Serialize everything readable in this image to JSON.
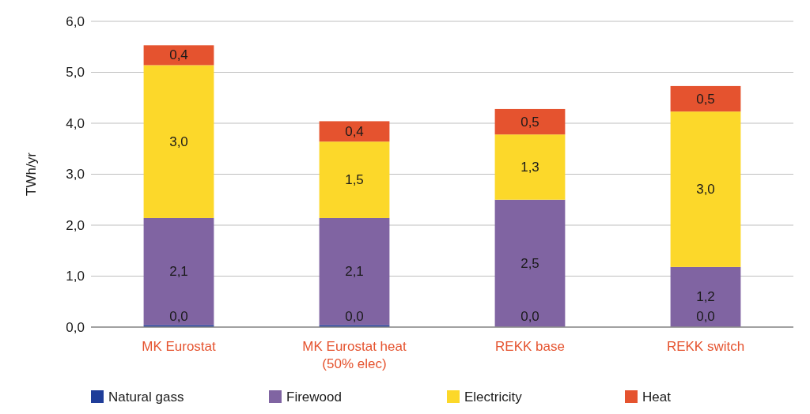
{
  "chart_data": {
    "type": "bar",
    "stacked": true,
    "ylabel": "TWh/yr",
    "categories": [
      "MK Eurostat",
      "MK Eurostat heat (50% elec)",
      "REKK base",
      "REKK switch"
    ],
    "series": [
      {
        "name": "Natural gass",
        "color": "#1f3d99",
        "values": [
          0.04,
          0.04,
          0,
          0
        ],
        "value_labels": [
          "0,0",
          "0,0",
          null,
          null
        ]
      },
      {
        "name": "Firewood",
        "color": "#8064a2",
        "values": [
          2.1,
          2.1,
          2.5,
          1.18
        ],
        "value_labels": [
          "2,1",
          "2,1",
          "2,5",
          "1,2"
        ]
      },
      {
        "name": "Electricity",
        "color": "#fcd82a",
        "values": [
          3.0,
          1.5,
          1.28,
          3.05
        ],
        "value_labels": [
          "3,0",
          "1,5",
          "1,3",
          "3,0"
        ]
      },
      {
        "name": "Heat",
        "color": "#e5532f",
        "values": [
          0.39,
          0.4,
          0.5,
          0.5
        ],
        "value_labels": [
          "0,4",
          "0,4",
          "0,5",
          "0,5"
        ]
      }
    ],
    "ylim": [
      0,
      6
    ],
    "yticks": [
      {
        "value": 0,
        "label": "0,0"
      },
      {
        "value": 1,
        "label": "1,0"
      },
      {
        "value": 2,
        "label": "2,0"
      },
      {
        "value": 3,
        "label": "3,0"
      },
      {
        "value": 4,
        "label": "4,0"
      },
      {
        "value": 5,
        "label": "5,0"
      },
      {
        "value": 6,
        "label": "6,0"
      }
    ],
    "grid": "y",
    "legend": "bottom",
    "annotations": [
      {
        "text": "0,0",
        "x": "REKK base",
        "y": 0
      },
      {
        "text": "0,0",
        "x": "REKK switch",
        "y": 0
      }
    ]
  }
}
